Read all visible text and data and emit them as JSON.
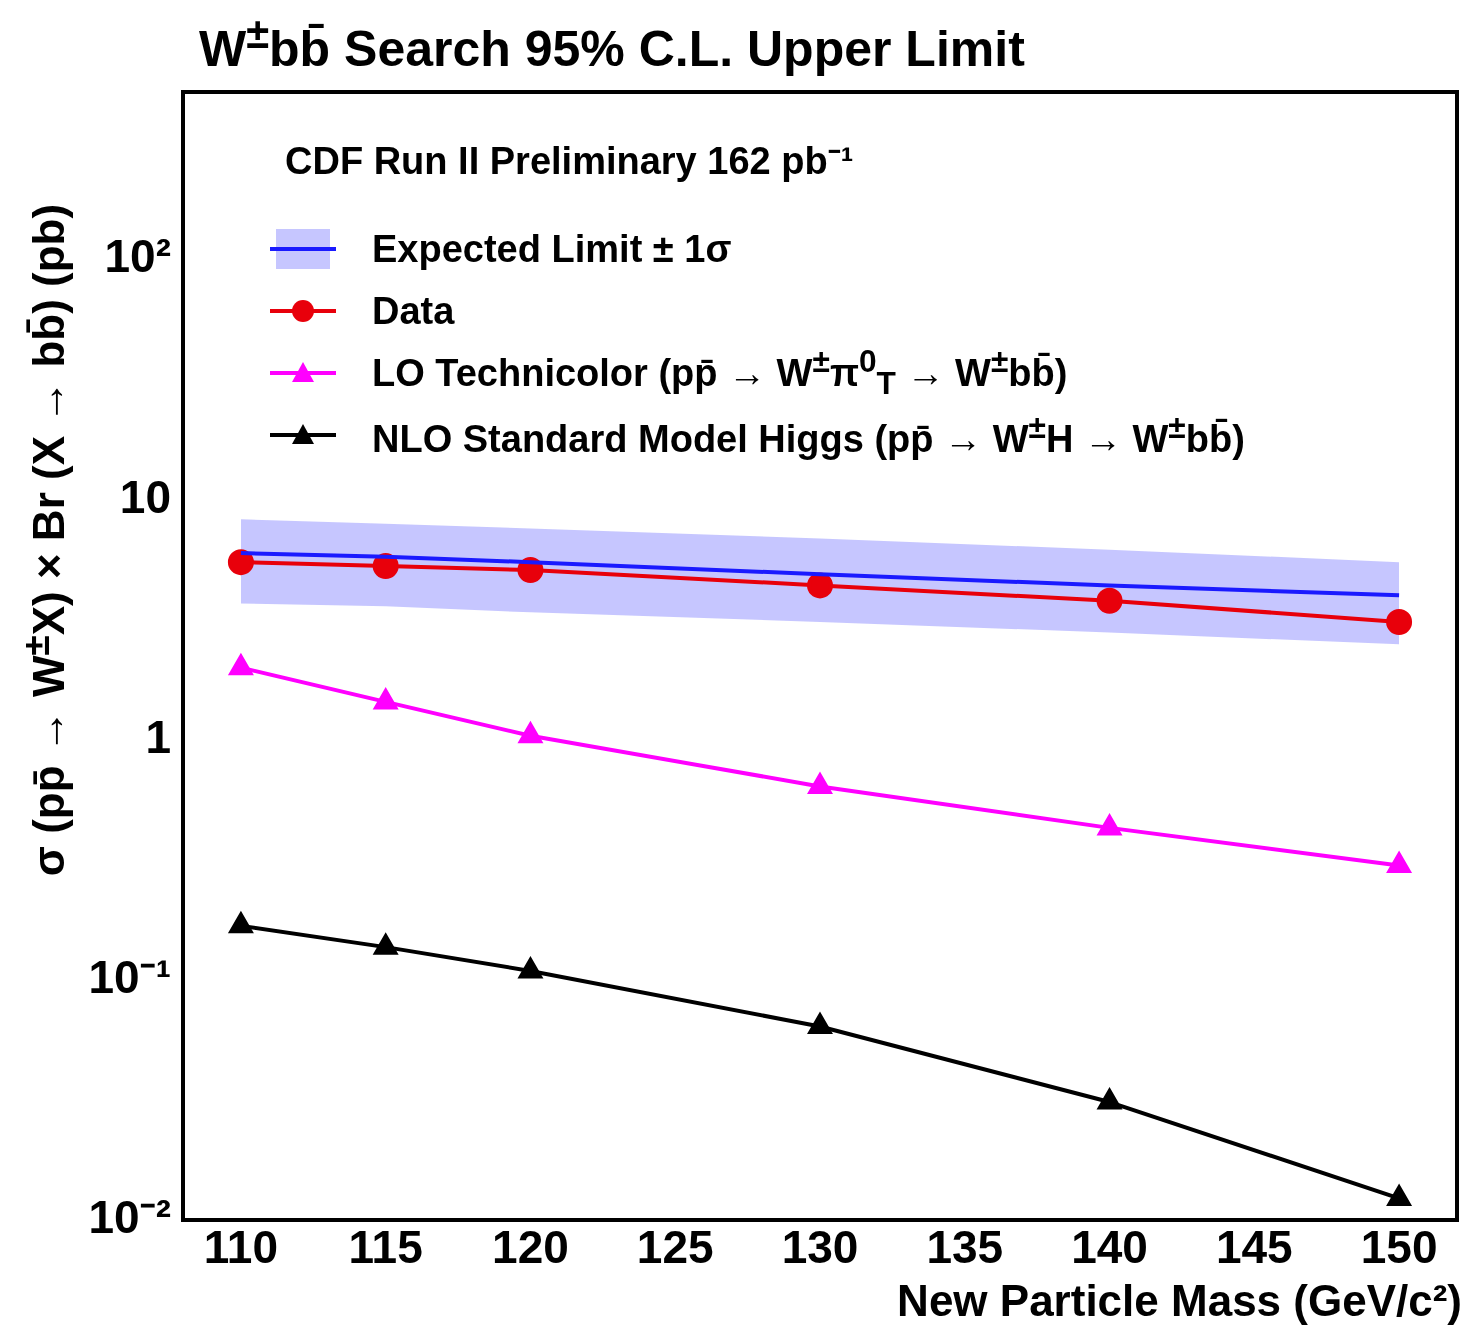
{
  "chart_data": {
    "type": "line",
    "title": "W$^{±}$bb̄ Search  95% C.L. Upper Limit",
    "xlabel": "New Particle Mass (GeV/c²)",
    "ylabel": "σ (pp̄ → W$^{±}$X) × Br (X → bb̄) (pb)",
    "annotations": [
      "CDF Run II Preliminary  162 pb⁻¹"
    ],
    "x": [
      110,
      115,
      120,
      130,
      140,
      150
    ],
    "xlim": [
      108,
      152
    ],
    "xticks": [
      110,
      115,
      120,
      125,
      130,
      135,
      140,
      145,
      150
    ],
    "ylim": [
      0.01,
      500
    ],
    "yticks": [
      {
        "value": 0.01,
        "label": "10⁻²"
      },
      {
        "value": 0.1,
        "label": "10⁻¹"
      },
      {
        "value": 1,
        "label": "1"
      },
      {
        "value": 10,
        "label": "10"
      },
      {
        "value": 100,
        "label": "10²"
      }
    ],
    "log": "y",
    "grid": false,
    "legend": "top left",
    "series": [
      {
        "name": "Expected Limit ± 1σ",
        "color": "#1a1aff",
        "marker": "none",
        "values": [
          6.0,
          5.8,
          5.5,
          4.9,
          4.4,
          4.0
        ],
        "lower": [
          3.7,
          3.6,
          3.4,
          3.1,
          2.8,
          2.5
        ],
        "upper": [
          8.3,
          7.95,
          7.6,
          6.9,
          6.2,
          5.5
        ]
      },
      {
        "name": "Data",
        "color": "#e8000b",
        "marker": "circle",
        "values": [
          5.5,
          5.3,
          5.1,
          4.4,
          3.8,
          3.1
        ]
      },
      {
        "name": "LO Technicolor (pp̄ → W$^{±}$π$^{0}$$_{T}$ → W$^{±}$bb̄)",
        "color": "#ff00ff",
        "marker": "triangle",
        "values": [
          2.0,
          1.44,
          1.04,
          0.64,
          0.43,
          0.3
        ]
      },
      {
        "name": "NLO Standard Model Higgs (pp̄ → W$^{±}$H → W$^{±}$bb̄)",
        "color": "#000000",
        "marker": "triangle",
        "values": [
          0.168,
          0.137,
          0.109,
          0.064,
          0.031,
          0.0123
        ]
      }
    ]
  }
}
